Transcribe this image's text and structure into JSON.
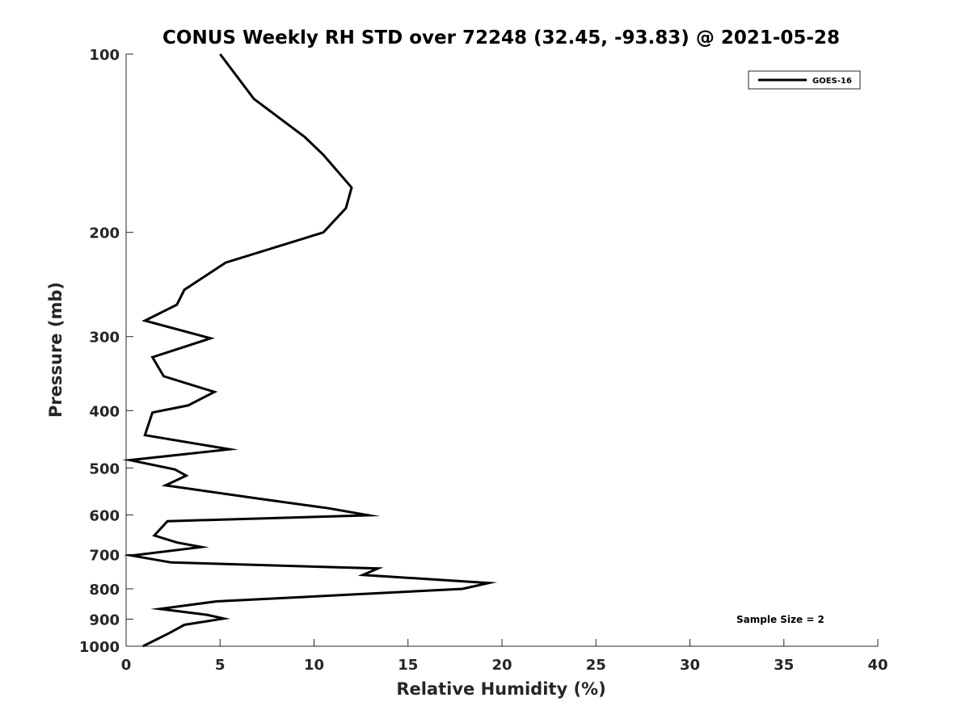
{
  "chart_data": {
    "type": "line",
    "title": "CONUS Weekly RH STD over 72248 (32.45, -93.83) @ 2021-05-28",
    "xlabel": "Relative Humidity (%)",
    "ylabel": "Pressure (mb)",
    "xlim": [
      0,
      40
    ],
    "ylim": [
      1000,
      100
    ],
    "y_scale": "log",
    "y_reversed": true,
    "grid": false,
    "legend_position": "top-right",
    "x_ticks": [
      0,
      5,
      10,
      15,
      20,
      25,
      30,
      35,
      40
    ],
    "y_ticks": [
      100,
      200,
      300,
      400,
      500,
      600,
      700,
      800,
      900,
      1000
    ],
    "series": [
      {
        "name": "GOES-16",
        "color": "#000000",
        "points": [
          [
            5.0,
            100
          ],
          [
            6.8,
            119
          ],
          [
            9.5,
            138
          ],
          [
            10.5,
            148
          ],
          [
            12.0,
            168
          ],
          [
            11.7,
            182
          ],
          [
            10.5,
            200
          ],
          [
            5.3,
            225
          ],
          [
            3.1,
            250
          ],
          [
            2.7,
            265
          ],
          [
            1.0,
            282
          ],
          [
            4.5,
            302
          ],
          [
            1.4,
            325
          ],
          [
            2.0,
            350
          ],
          [
            4.7,
            372
          ],
          [
            3.3,
            392
          ],
          [
            1.4,
            403
          ],
          [
            1.0,
            440
          ],
          [
            5.5,
            465
          ],
          [
            0.2,
            485
          ],
          [
            2.6,
            503
          ],
          [
            3.2,
            515
          ],
          [
            2.1,
            535
          ],
          [
            7.0,
            563
          ],
          [
            10.8,
            585
          ],
          [
            12.9,
            601
          ],
          [
            2.2,
            615
          ],
          [
            1.5,
            650
          ],
          [
            2.7,
            668
          ],
          [
            4.0,
            680
          ],
          [
            0.3,
            703
          ],
          [
            2.4,
            722
          ],
          [
            13.4,
            739
          ],
          [
            12.6,
            758
          ],
          [
            19.3,
            782
          ],
          [
            17.9,
            800
          ],
          [
            12.0,
            818
          ],
          [
            4.8,
            840
          ],
          [
            1.8,
            865
          ],
          [
            4.3,
            885
          ],
          [
            5.2,
            898
          ],
          [
            3.1,
            920
          ],
          [
            2.3,
            950
          ],
          [
            0.9,
            1000
          ]
        ]
      }
    ],
    "annotations": [
      "Sample Size = 2"
    ]
  }
}
